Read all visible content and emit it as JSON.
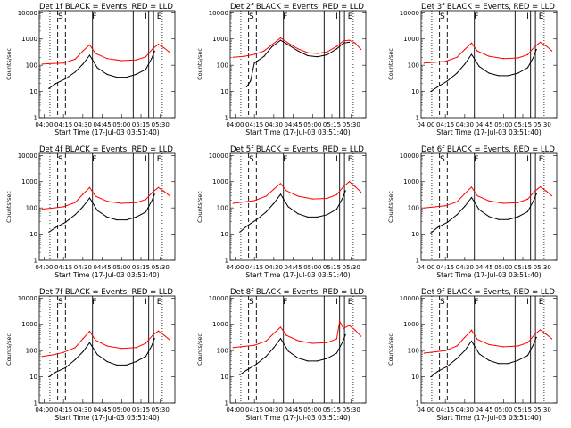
{
  "chart_data": {
    "type": "line",
    "panels": [
      {
        "title": "Det  1f BLACK = Events, RED = LLD",
        "xlabel": "Start Time (17-Jul-03 03:51:40)",
        "ylabel": "Counts/sec",
        "red": [
          [
            3.98,
            110
          ],
          [
            4.05,
            115
          ],
          [
            4.2,
            120
          ],
          [
            4.32,
            170
          ],
          [
            4.4,
            350
          ],
          [
            4.47,
            600
          ],
          [
            4.53,
            280
          ],
          [
            4.65,
            180
          ],
          [
            4.8,
            150
          ],
          [
            4.95,
            160
          ],
          [
            5.05,
            210
          ],
          [
            5.12,
            420
          ],
          [
            5.18,
            630
          ],
          [
            5.24,
            450
          ],
          [
            5.3,
            300
          ]
        ],
        "black": [
          [
            4.05,
            13
          ],
          [
            4.12,
            20
          ],
          [
            4.22,
            30
          ],
          [
            4.32,
            55
          ],
          [
            4.4,
            110
          ],
          [
            4.47,
            240
          ],
          [
            4.55,
            80
          ],
          [
            4.65,
            45
          ],
          [
            4.75,
            35
          ],
          [
            4.85,
            35
          ],
          [
            4.95,
            45
          ],
          [
            5.05,
            70
          ],
          [
            5.11,
            180
          ],
          [
            5.14,
            340
          ]
        ]
      },
      {
        "title": "Det  2f BLACK = Events, RED = LLD",
        "xlabel": "Start Time (17-Jul-03 03:51:40)",
        "ylabel": "Counts/sec",
        "red": [
          [
            3.98,
            200
          ],
          [
            4.1,
            220
          ],
          [
            4.2,
            260
          ],
          [
            4.3,
            350
          ],
          [
            4.38,
            600
          ],
          [
            4.47,
            1100
          ],
          [
            4.55,
            700
          ],
          [
            4.65,
            420
          ],
          [
            4.75,
            300
          ],
          [
            4.85,
            280
          ],
          [
            4.95,
            320
          ],
          [
            5.05,
            520
          ],
          [
            5.12,
            850
          ],
          [
            5.18,
            900
          ],
          [
            5.24,
            700
          ],
          [
            5.3,
            400
          ]
        ],
        "black": [
          [
            4.12,
            15
          ],
          [
            4.16,
            25
          ],
          [
            4.2,
            120
          ],
          [
            4.3,
            220
          ],
          [
            4.38,
            500
          ],
          [
            4.47,
            900
          ],
          [
            4.55,
            600
          ],
          [
            4.65,
            350
          ],
          [
            4.75,
            230
          ],
          [
            4.85,
            210
          ],
          [
            4.95,
            250
          ],
          [
            5.05,
            420
          ],
          [
            5.12,
            700
          ],
          [
            5.18,
            750
          ]
        ]
      },
      {
        "title": "Det  3f BLACK = Events, RED = LLD",
        "xlabel": "Start Time (17-Jul-03 03:51:40)",
        "ylabel": "Counts/sec",
        "red": [
          [
            3.98,
            120
          ],
          [
            4.1,
            130
          ],
          [
            4.2,
            140
          ],
          [
            4.32,
            200
          ],
          [
            4.4,
            400
          ],
          [
            4.47,
            700
          ],
          [
            4.53,
            350
          ],
          [
            4.65,
            220
          ],
          [
            4.8,
            180
          ],
          [
            4.95,
            190
          ],
          [
            5.05,
            250
          ],
          [
            5.12,
            500
          ],
          [
            5.18,
            750
          ],
          [
            5.24,
            550
          ],
          [
            5.3,
            350
          ]
        ],
        "black": [
          [
            4.05,
            10
          ],
          [
            4.12,
            15
          ],
          [
            4.22,
            25
          ],
          [
            4.32,
            50
          ],
          [
            4.4,
            110
          ],
          [
            4.47,
            260
          ],
          [
            4.55,
            90
          ],
          [
            4.65,
            50
          ],
          [
            4.75,
            40
          ],
          [
            4.85,
            40
          ],
          [
            4.95,
            50
          ],
          [
            5.05,
            80
          ],
          [
            5.11,
            200
          ],
          [
            5.14,
            400
          ]
        ]
      },
      {
        "title": "Det  4f BLACK = Events, RED = LLD",
        "xlabel": "Start Time (17-Jul-03 03:51:40)",
        "ylabel": "Counts/sec",
        "red": [
          [
            3.98,
            90
          ],
          [
            4.1,
            100
          ],
          [
            4.2,
            110
          ],
          [
            4.32,
            160
          ],
          [
            4.4,
            330
          ],
          [
            4.47,
            600
          ],
          [
            4.53,
            280
          ],
          [
            4.65,
            180
          ],
          [
            4.8,
            150
          ],
          [
            4.95,
            160
          ],
          [
            5.05,
            210
          ],
          [
            5.12,
            400
          ],
          [
            5.18,
            600
          ],
          [
            5.24,
            420
          ],
          [
            5.3,
            280
          ]
        ],
        "black": [
          [
            4.05,
            12
          ],
          [
            4.12,
            18
          ],
          [
            4.22,
            28
          ],
          [
            4.32,
            55
          ],
          [
            4.4,
            110
          ],
          [
            4.47,
            240
          ],
          [
            4.55,
            80
          ],
          [
            4.65,
            45
          ],
          [
            4.75,
            35
          ],
          [
            4.85,
            35
          ],
          [
            4.95,
            45
          ],
          [
            5.05,
            70
          ],
          [
            5.11,
            180
          ],
          [
            5.14,
            330
          ]
        ]
      },
      {
        "title": "Det  5f BLACK = Events, RED = LLD",
        "xlabel": "Start Time (17-Jul-03 03:51:40)",
        "ylabel": "Counts/sec",
        "red": [
          [
            3.98,
            150
          ],
          [
            4.1,
            170
          ],
          [
            4.2,
            190
          ],
          [
            4.32,
            280
          ],
          [
            4.4,
            520
          ],
          [
            4.47,
            850
          ],
          [
            4.53,
            450
          ],
          [
            4.65,
            280
          ],
          [
            4.8,
            220
          ],
          [
            4.95,
            230
          ],
          [
            5.05,
            320
          ],
          [
            5.12,
            650
          ],
          [
            5.18,
            1000
          ],
          [
            5.24,
            650
          ],
          [
            5.3,
            400
          ]
        ],
        "black": [
          [
            4.05,
            12
          ],
          [
            4.12,
            20
          ],
          [
            4.22,
            35
          ],
          [
            4.32,
            70
          ],
          [
            4.4,
            150
          ],
          [
            4.47,
            330
          ],
          [
            4.55,
            110
          ],
          [
            4.65,
            60
          ],
          [
            4.75,
            45
          ],
          [
            4.85,
            45
          ],
          [
            4.95,
            55
          ],
          [
            5.05,
            90
          ],
          [
            5.11,
            230
          ],
          [
            5.14,
            450
          ]
        ]
      },
      {
        "title": "Det  6f BLACK = Events, RED = LLD",
        "xlabel": "Start Time (17-Jul-03 03:51:40)",
        "ylabel": "Counts/sec",
        "red": [
          [
            3.98,
            100
          ],
          [
            4.1,
            110
          ],
          [
            4.2,
            120
          ],
          [
            4.32,
            170
          ],
          [
            4.4,
            350
          ],
          [
            4.47,
            620
          ],
          [
            4.53,
            290
          ],
          [
            4.65,
            185
          ],
          [
            4.8,
            150
          ],
          [
            4.95,
            160
          ],
          [
            5.05,
            215
          ],
          [
            5.12,
            420
          ],
          [
            5.18,
            630
          ],
          [
            5.24,
            440
          ],
          [
            5.3,
            290
          ]
        ],
        "black": [
          [
            4.05,
            11
          ],
          [
            4.12,
            18
          ],
          [
            4.22,
            28
          ],
          [
            4.32,
            55
          ],
          [
            4.4,
            115
          ],
          [
            4.47,
            250
          ],
          [
            4.55,
            85
          ],
          [
            4.65,
            47
          ],
          [
            4.75,
            36
          ],
          [
            4.85,
            36
          ],
          [
            4.95,
            46
          ],
          [
            5.05,
            72
          ],
          [
            5.11,
            185
          ],
          [
            5.14,
            340
          ]
        ]
      },
      {
        "title": "Det  7f BLACK = Events, RED = LLD",
        "xlabel": "Start Time (17-Jul-03 03:51:40)",
        "ylabel": "Counts/sec",
        "red": [
          [
            3.98,
            60
          ],
          [
            4.1,
            70
          ],
          [
            4.2,
            85
          ],
          [
            4.32,
            130
          ],
          [
            4.4,
            280
          ],
          [
            4.47,
            550
          ],
          [
            4.53,
            250
          ],
          [
            4.65,
            150
          ],
          [
            4.8,
            120
          ],
          [
            4.95,
            130
          ],
          [
            5.05,
            190
          ],
          [
            5.12,
            380
          ],
          [
            5.18,
            560
          ],
          [
            5.24,
            380
          ],
          [
            5.3,
            250
          ]
        ],
        "black": [
          [
            4.05,
            10
          ],
          [
            4.12,
            15
          ],
          [
            4.22,
            22
          ],
          [
            4.32,
            45
          ],
          [
            4.4,
            90
          ],
          [
            4.47,
            200
          ],
          [
            4.55,
            70
          ],
          [
            4.65,
            38
          ],
          [
            4.75,
            28
          ],
          [
            4.85,
            28
          ],
          [
            4.95,
            38
          ],
          [
            5.05,
            60
          ],
          [
            5.11,
            150
          ],
          [
            5.14,
            290
          ]
        ]
      },
      {
        "title": "Det  8f BLACK = Events, RED = LLD",
        "xlabel": "Start Time (17-Jul-03 03:51:40)",
        "ylabel": "Counts/sec",
        "red": [
          [
            3.98,
            130
          ],
          [
            4.1,
            145
          ],
          [
            4.2,
            160
          ],
          [
            4.32,
            230
          ],
          [
            4.4,
            450
          ],
          [
            4.47,
            780
          ],
          [
            4.53,
            380
          ],
          [
            4.65,
            240
          ],
          [
            4.8,
            190
          ],
          [
            4.95,
            200
          ],
          [
            5.05,
            280
          ],
          [
            5.08,
            1300
          ],
          [
            5.12,
            700
          ],
          [
            5.18,
            900
          ],
          [
            5.24,
            600
          ],
          [
            5.3,
            350
          ]
        ],
        "black": [
          [
            4.05,
            12
          ],
          [
            4.12,
            18
          ],
          [
            4.22,
            30
          ],
          [
            4.32,
            60
          ],
          [
            4.4,
            130
          ],
          [
            4.47,
            290
          ],
          [
            4.55,
            95
          ],
          [
            4.65,
            52
          ],
          [
            4.75,
            40
          ],
          [
            4.85,
            40
          ],
          [
            4.95,
            50
          ],
          [
            5.05,
            80
          ],
          [
            5.11,
            210
          ],
          [
            5.14,
            400
          ]
        ]
      },
      {
        "title": "Det  9f BLACK = Events, RED = LLD",
        "xlabel": "Start Time (17-Jul-03 03:51:40)",
        "ylabel": "Counts/sec",
        "red": [
          [
            3.98,
            80
          ],
          [
            4.1,
            90
          ],
          [
            4.2,
            100
          ],
          [
            4.32,
            150
          ],
          [
            4.4,
            320
          ],
          [
            4.47,
            600
          ],
          [
            4.53,
            270
          ],
          [
            4.65,
            170
          ],
          [
            4.8,
            140
          ],
          [
            4.95,
            150
          ],
          [
            5.05,
            200
          ],
          [
            5.12,
            400
          ],
          [
            5.18,
            620
          ],
          [
            5.24,
            420
          ],
          [
            5.3,
            280
          ]
        ],
        "black": [
          [
            4.05,
            10
          ],
          [
            4.12,
            16
          ],
          [
            4.22,
            25
          ],
          [
            4.32,
            50
          ],
          [
            4.4,
            100
          ],
          [
            4.47,
            230
          ],
          [
            4.55,
            75
          ],
          [
            4.65,
            42
          ],
          [
            4.75,
            32
          ],
          [
            4.85,
            32
          ],
          [
            4.95,
            42
          ],
          [
            5.05,
            65
          ],
          [
            5.11,
            170
          ],
          [
            5.14,
            320
          ]
        ]
      }
    ],
    "xlim": [
      3.95,
      5.35
    ],
    "ylim": [
      1,
      12000
    ],
    "yscale": "log",
    "xticks": [
      "04:00",
      "04:15",
      "04:30",
      "04:45",
      "05:00",
      "05:15",
      "05:30"
    ],
    "yticks": [
      "1",
      "10",
      "100",
      "1000",
      "10000"
    ],
    "series_colors": {
      "black": "#000000",
      "red": "#ff0000"
    },
    "vlines_solid": [
      4.5,
      4.92,
      5.08,
      5.13
    ],
    "vlines_dashed": [
      4.14,
      4.22
    ],
    "vlines_dotted": [
      4.06,
      5.22
    ],
    "markers": [
      {
        "text": "S",
        "x": 4.17
      },
      {
        "text": "F",
        "x": 4.52
      },
      {
        "text": "I",
        "x": 5.05
      },
      {
        "text": "E",
        "x": 5.19
      }
    ]
  }
}
